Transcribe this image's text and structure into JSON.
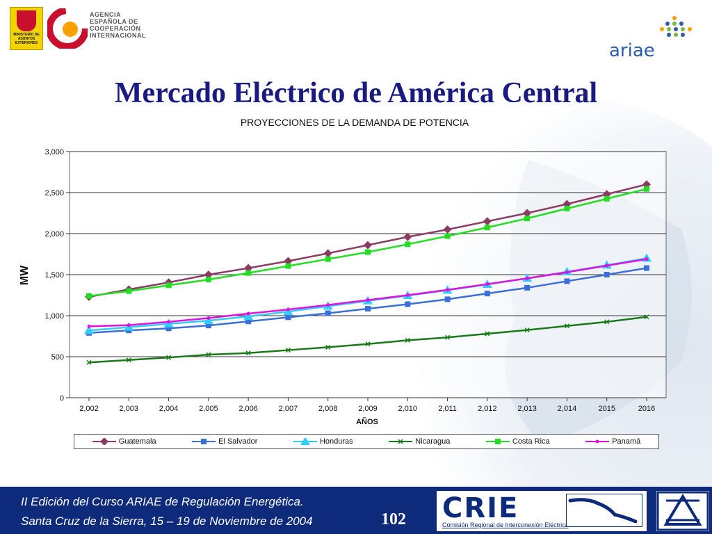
{
  "header": {
    "ministry_text": "MINISTERIO DE ASUNTOS EXTERIORES",
    "agency_lines": [
      "AGENCIA",
      "ESPAÑOLA DE",
      "COOPERACIÓN",
      "INTERNACIONAL"
    ],
    "ariae_text": "ariae"
  },
  "slide": {
    "title": "Mercado Eléctrico de América Central"
  },
  "chart_data": {
    "type": "line",
    "title": "PROYECCIONES DE LA DEMANDA DE POTENCIA",
    "xlabel": "AÑOS",
    "ylabel": "MW",
    "categories": [
      "2,002",
      "2,003",
      "2,004",
      "2,005",
      "2,006",
      "2,007",
      "2,008",
      "2,009",
      "2,010",
      "2,011",
      "2,012",
      "2,013",
      "2,014",
      "2015",
      "2016"
    ],
    "ylim": [
      0,
      3000
    ],
    "yticks": [
      0,
      500,
      1000,
      1500,
      2000,
      2500,
      3000
    ],
    "ytick_labels": [
      "0",
      "500",
      "1,000",
      "1,500",
      "2,000",
      "2,500",
      "3,000"
    ],
    "grid": "horizontal",
    "legend_position": "bottom",
    "series": [
      {
        "name": "Guatemala",
        "color": "#8b3a62",
        "marker": "diamond",
        "values": [
          1230,
          1320,
          1405,
          1500,
          1580,
          1665,
          1760,
          1860,
          1960,
          2050,
          2150,
          2250,
          2360,
          2480,
          2600
        ]
      },
      {
        "name": "El Salvador",
        "color": "#3a6fd8",
        "marker": "square",
        "values": [
          790,
          820,
          845,
          880,
          930,
          980,
          1030,
          1085,
          1140,
          1200,
          1270,
          1340,
          1420,
          1500,
          1580
        ]
      },
      {
        "name": "Honduras",
        "color": "#33ccff",
        "marker": "triangle",
        "values": [
          820,
          860,
          900,
          940,
          990,
          1050,
          1115,
          1180,
          1245,
          1310,
          1380,
          1455,
          1535,
          1615,
          1700
        ]
      },
      {
        "name": "Nicaragua",
        "color": "#1a7a1a",
        "marker": "x",
        "values": [
          430,
          460,
          490,
          525,
          545,
          580,
          615,
          655,
          700,
          735,
          780,
          825,
          875,
          925,
          985
        ]
      },
      {
        "name": "Costa Rica",
        "color": "#22dd22",
        "marker": "square",
        "values": [
          1240,
          1300,
          1370,
          1440,
          1520,
          1605,
          1690,
          1775,
          1870,
          1970,
          2075,
          2185,
          2305,
          2425,
          2545
        ]
      },
      {
        "name": "Panamá",
        "color": "#e010e0",
        "marker": "none",
        "values": [
          870,
          885,
          925,
          970,
          1025,
          1075,
          1130,
          1190,
          1250,
          1315,
          1385,
          1455,
          1530,
          1610,
          1690
        ]
      }
    ]
  },
  "footer": {
    "line1": "II Edición del Curso ARIAE de Regulación Energética.",
    "line2": "Santa Cruz de la Sierra, 15 – 19  de Noviembre de 2004",
    "page_number": "102",
    "crie_word": "CRIE",
    "crie_subtitle": "Comisión Regional de Interconexión Eléctrica"
  }
}
